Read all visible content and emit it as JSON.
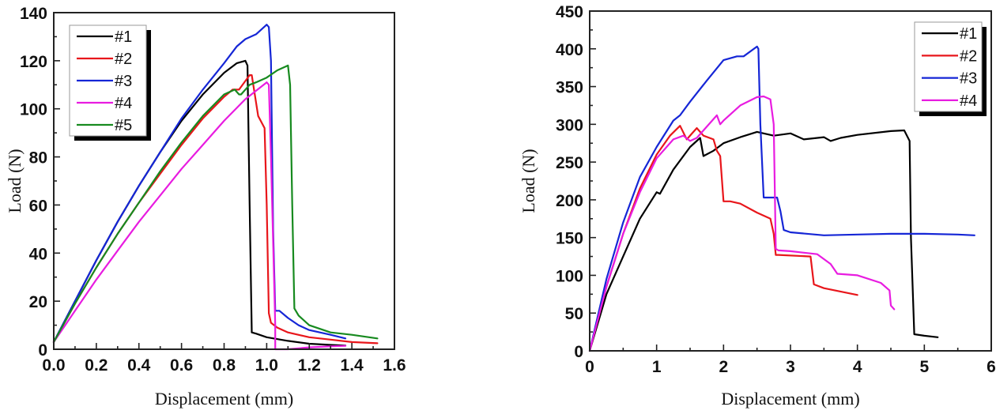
{
  "chart_data": [
    {
      "type": "line",
      "title": "",
      "xlabel": "Displacement (mm)",
      "ylabel": "Load (N)",
      "xlim": [
        0,
        1.6
      ],
      "ylim": [
        0,
        140
      ],
      "xticks": [
        "0.0",
        "0.2",
        "0.4",
        "0.6",
        "0.8",
        "1.0",
        "1.2",
        "1.4",
        "1.6"
      ],
      "yticks": [
        "0",
        "20",
        "40",
        "60",
        "80",
        "100",
        "120",
        "140"
      ],
      "grid": false,
      "legend_position": "top-left",
      "series": [
        {
          "name": "#1",
          "color": "#000000",
          "x": [
            0,
            0.1,
            0.2,
            0.3,
            0.4,
            0.5,
            0.6,
            0.7,
            0.8,
            0.86,
            0.9,
            0.91,
            0.92,
            0.93,
            0.95,
            1.0,
            1.1,
            1.2,
            1.3,
            1.37
          ],
          "y": [
            3,
            20,
            37,
            53,
            68,
            82,
            95,
            106,
            115,
            119,
            120,
            118,
            60,
            7,
            6.5,
            5,
            3.5,
            2.3,
            1.8,
            1.5
          ]
        },
        {
          "name": "#2",
          "color": "#e8161b",
          "x": [
            0,
            0.1,
            0.2,
            0.3,
            0.4,
            0.5,
            0.6,
            0.7,
            0.8,
            0.84,
            0.87,
            0.92,
            0.93,
            0.96,
            0.99,
            1.0,
            1.01,
            1.02,
            1.05,
            1.1,
            1.2,
            1.3,
            1.4,
            1.52
          ],
          "y": [
            3,
            19,
            34,
            48,
            61,
            73,
            85,
            96,
            105,
            108,
            108,
            114,
            114,
            97,
            92,
            60,
            15,
            11,
            9,
            7,
            5,
            4,
            3,
            2.5
          ]
        },
        {
          "name": "#3",
          "color": "#1526d6",
          "x": [
            0,
            0.1,
            0.2,
            0.3,
            0.4,
            0.5,
            0.6,
            0.7,
            0.8,
            0.86,
            0.9,
            0.95,
            1.0,
            1.01,
            1.02,
            1.03,
            1.04,
            1.06,
            1.1,
            1.15,
            1.2,
            1.3,
            1.37
          ],
          "y": [
            3,
            20,
            37,
            53,
            68,
            82,
            96,
            108,
            119,
            126,
            129,
            131,
            135,
            134,
            120,
            50,
            16,
            16,
            13,
            10,
            8,
            6,
            4.5
          ]
        },
        {
          "name": "#4",
          "color": "#e81ce0",
          "x": [
            0,
            0.1,
            0.2,
            0.3,
            0.4,
            0.5,
            0.6,
            0.7,
            0.8,
            0.9,
            1.0,
            1.01,
            1.02,
            1.04,
            1.04,
            1.1,
            1.2,
            1.3,
            1.37
          ],
          "y": [
            3,
            16,
            29,
            41,
            53,
            64,
            75,
            85,
            95,
            104,
            111,
            110,
            80,
            10,
            0,
            0,
            0.8,
            1.2,
            1.4
          ]
        },
        {
          "name": "#5",
          "color": "#178a1f",
          "x": [
            0,
            0.1,
            0.2,
            0.3,
            0.4,
            0.5,
            0.6,
            0.7,
            0.8,
            0.85,
            0.87,
            0.88,
            0.92,
            0.95,
            1.0,
            1.05,
            1.1,
            1.11,
            1.12,
            1.13,
            1.15,
            1.2,
            1.3,
            1.4,
            1.52
          ],
          "y": [
            3,
            19,
            34,
            48,
            61,
            74,
            86,
            97,
            106,
            108,
            106,
            106,
            110,
            111,
            113,
            116,
            118,
            110,
            60,
            17,
            14,
            10,
            7,
            6,
            4.5
          ]
        }
      ]
    },
    {
      "type": "line",
      "title": "",
      "xlabel": "Displacement (mm)",
      "ylabel": "Load (N)",
      "xlim": [
        0,
        6
      ],
      "ylim": [
        0,
        450
      ],
      "xticks": [
        "0",
        "1",
        "2",
        "3",
        "4",
        "5",
        "6"
      ],
      "yticks": [
        "0",
        "50",
        "100",
        "150",
        "200",
        "250",
        "300",
        "350",
        "400",
        "450"
      ],
      "grid": false,
      "legend_position": "top-right",
      "series": [
        {
          "name": "#1",
          "color": "#000000",
          "x": [
            0,
            0.25,
            0.5,
            0.75,
            1.0,
            1.05,
            1.25,
            1.5,
            1.65,
            1.7,
            1.85,
            2.0,
            2.25,
            2.5,
            2.75,
            3.0,
            3.2,
            3.5,
            3.6,
            3.75,
            4.0,
            4.5,
            4.7,
            4.78,
            4.8,
            4.85,
            5.0,
            5.2
          ],
          "y": [
            0,
            75,
            125,
            175,
            210,
            208,
            240,
            270,
            282,
            258,
            265,
            275,
            283,
            290,
            285,
            288,
            280,
            283,
            278,
            282,
            286,
            291,
            292,
            278,
            150,
            22,
            20,
            18
          ]
        },
        {
          "name": "#2",
          "color": "#e8161b",
          "x": [
            0,
            0.25,
            0.5,
            0.75,
            1.0,
            1.2,
            1.35,
            1.45,
            1.55,
            1.6,
            1.7,
            1.85,
            1.9,
            1.95,
            2.0,
            2.1,
            2.25,
            2.5,
            2.7,
            2.75,
            2.78,
            2.82,
            3.3,
            3.35,
            3.5,
            4.0
          ],
          "y": [
            0,
            85,
            155,
            215,
            260,
            285,
            298,
            280,
            290,
            295,
            285,
            280,
            265,
            258,
            198,
            198,
            195,
            183,
            175,
            155,
            127,
            127,
            125,
            88,
            83,
            74
          ]
        },
        {
          "name": "#3",
          "color": "#1526d6",
          "x": [
            0,
            0.25,
            0.5,
            0.75,
            1.0,
            1.25,
            1.35,
            1.5,
            1.75,
            2.0,
            2.2,
            2.3,
            2.5,
            2.52,
            2.55,
            2.6,
            2.8,
            2.85,
            2.9,
            3.0,
            3.5,
            4.0,
            4.5,
            5.0,
            5.5,
            5.75
          ],
          "y": [
            0,
            95,
            170,
            230,
            270,
            305,
            312,
            330,
            358,
            385,
            390,
            390,
            403,
            400,
            300,
            203,
            203,
            185,
            160,
            157,
            153,
            154,
            155,
            155,
            154,
            153
          ]
        },
        {
          "name": "#4",
          "color": "#e81ce0",
          "x": [
            0,
            0.25,
            0.5,
            0.75,
            1.0,
            1.25,
            1.4,
            1.5,
            1.6,
            1.9,
            1.95,
            2.0,
            2.25,
            2.5,
            2.6,
            2.7,
            2.75,
            2.78,
            2.82,
            3.0,
            3.4,
            3.6,
            3.7,
            4.0,
            4.35,
            4.48,
            4.5,
            4.55
          ],
          "y": [
            0,
            85,
            155,
            210,
            255,
            280,
            285,
            278,
            282,
            312,
            300,
            305,
            325,
            336,
            337,
            333,
            300,
            135,
            133,
            132,
            128,
            115,
            102,
            100,
            90,
            80,
            60,
            55
          ]
        }
      ]
    }
  ]
}
